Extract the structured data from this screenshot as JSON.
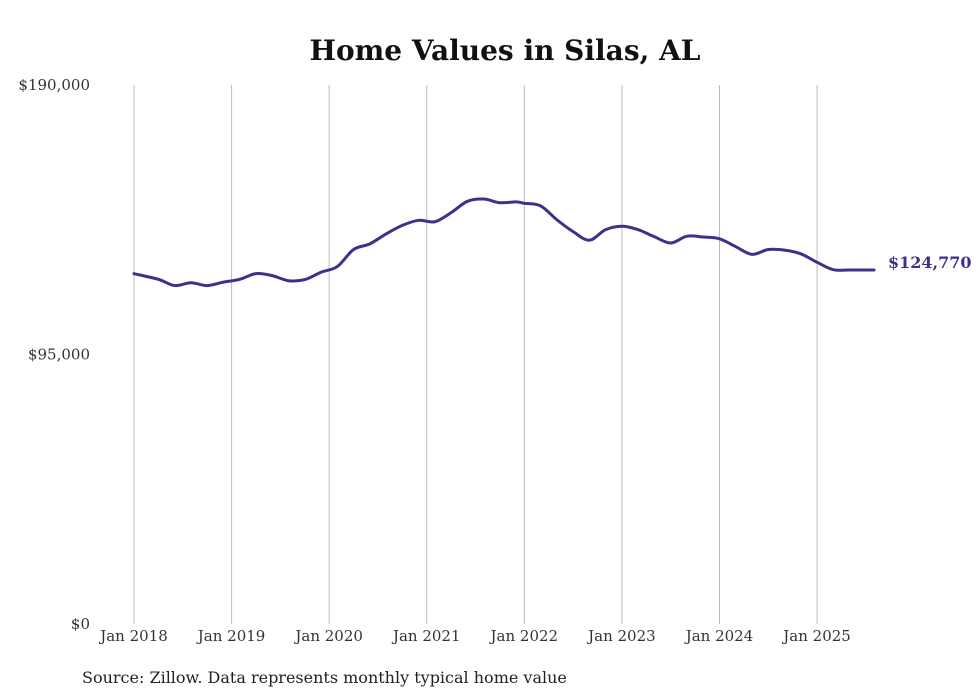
{
  "chart_data": {
    "type": "line",
    "title": "Home Values in Silas, AL",
    "xlabel": "",
    "ylabel": "",
    "ylim": [
      0,
      190000
    ],
    "yticks": [
      {
        "value": 0,
        "label": "$0"
      },
      {
        "value": 95000,
        "label": "$95,000"
      },
      {
        "value": 190000,
        "label": "$190,000"
      }
    ],
    "xticks": [
      {
        "value": 0,
        "label": "Jan 2018"
      },
      {
        "value": 12,
        "label": "Jan 2019"
      },
      {
        "value": 24,
        "label": "Jan 2020"
      },
      {
        "value": 36,
        "label": "Jan 2021"
      },
      {
        "value": 48,
        "label": "Jan 2022"
      },
      {
        "value": 60,
        "label": "Jan 2023"
      },
      {
        "value": 72,
        "label": "Jan 2024"
      },
      {
        "value": 84,
        "label": "Jan 2025"
      }
    ],
    "x_unit": "months since Jan 2018",
    "xlim": [
      0,
      91
    ],
    "grid": "vertical",
    "series": [
      {
        "name": "Typical home value",
        "color": "#3b3289",
        "x": [
          0,
          3,
          5,
          7,
          9,
          11,
          13,
          15,
          17,
          19,
          21,
          23,
          25,
          27,
          29,
          31,
          33,
          35,
          37,
          39,
          41,
          43,
          45,
          47,
          48,
          50,
          52,
          54,
          56,
          58,
          60,
          62,
          64,
          66,
          68,
          70,
          72,
          74,
          76,
          78,
          80,
          82,
          84,
          86,
          88,
          90,
          91
        ],
        "values": [
          123500,
          121500,
          119300,
          120300,
          119300,
          120500,
          121500,
          123500,
          122800,
          121000,
          121400,
          124000,
          126000,
          132000,
          134000,
          137500,
          140500,
          142300,
          141800,
          145000,
          149000,
          149800,
          148500,
          148800,
          148300,
          147400,
          142500,
          138300,
          135300,
          139000,
          140200,
          139000,
          136500,
          134300,
          136700,
          136400,
          135800,
          133000,
          130300,
          132000,
          131800,
          130500,
          127500,
          124900,
          124800,
          124770,
          124770
        ]
      }
    ],
    "end_label": "$124,770",
    "source": "Source: Zillow. Data represents monthly typical home value"
  }
}
